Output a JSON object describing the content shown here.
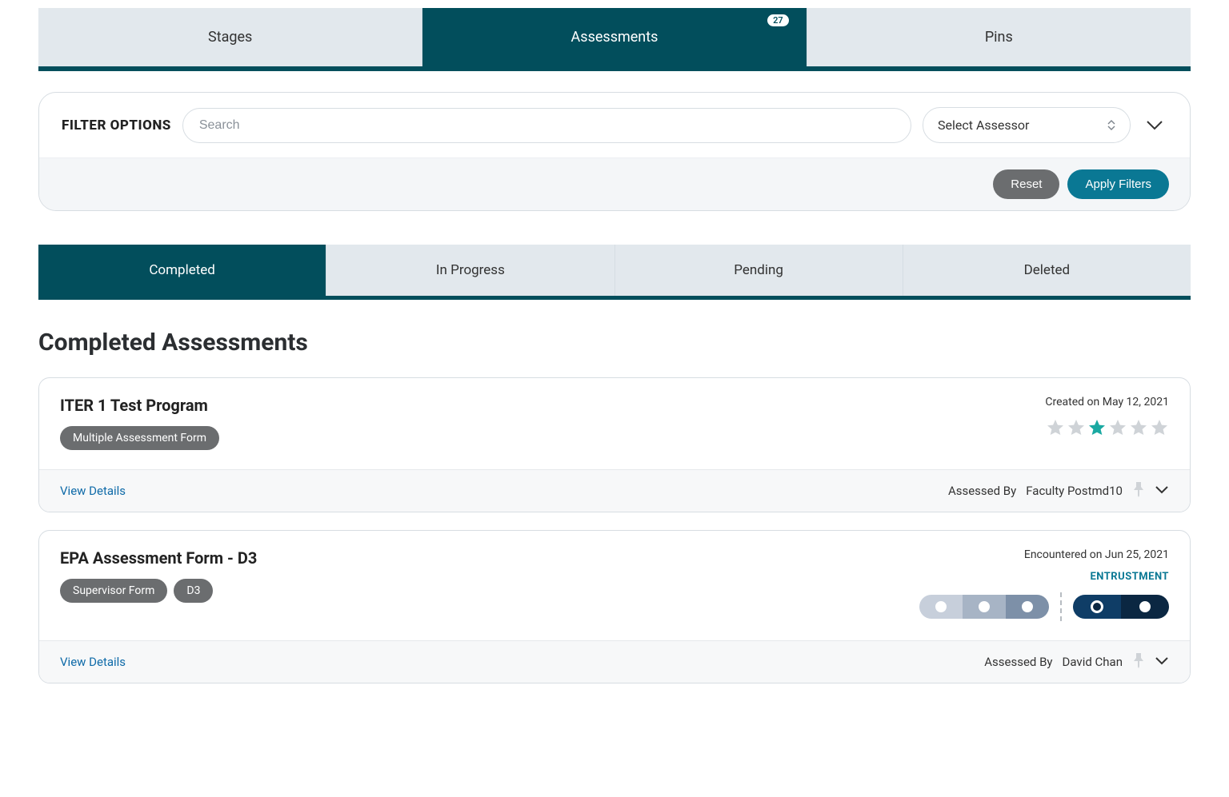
{
  "colors": {
    "brand_dark": "#024e5c",
    "brand_accent": "#0a7894",
    "tab_bg": "#e2e8ed",
    "gray_chip": "#6b6d6f",
    "star_empty": "#cfd3d7",
    "star_filled": "#1aa9a2",
    "link": "#0e6aa8",
    "scale1": "#c7cfdb",
    "scale2": "#a7b4c5",
    "scale3": "#7d90a8",
    "entrust1": "#0f3d66",
    "entrust2": "#0b2742"
  },
  "top_tabs": {
    "stages": "Stages",
    "assessments": "Assessments",
    "assessments_badge": "27",
    "pins": "Pins",
    "active": "assessments"
  },
  "filter": {
    "label": "FILTER OPTIONS",
    "search_placeholder": "Search",
    "select_label": "Select Assessor",
    "reset": "Reset",
    "apply": "Apply Filters"
  },
  "status_tabs": {
    "completed": "Completed",
    "in_progress": "In Progress",
    "pending": "Pending",
    "deleted": "Deleted",
    "active": "completed"
  },
  "section_title": "Completed Assessments",
  "cards": [
    {
      "title": "ITER 1 Test Program",
      "chips": [
        "Multiple Assessment Form"
      ],
      "meta": "Created on May 12, 2021",
      "stars_total": 6,
      "star_filled_index": 2,
      "view": "View Details",
      "assessed_by_label": "Assessed By",
      "assessed_by_value": "Faculty Postmd10",
      "rating_type": "stars"
    },
    {
      "title": "EPA Assessment Form - D3",
      "chips": [
        "Supervisor Form",
        "D3"
      ],
      "meta": "Encountered on Jun 25, 2021",
      "entrust_label": "ENTRUSTMENT",
      "scale_colors": [
        "#c7cfdb",
        "#a7b4c5",
        "#7d90a8"
      ],
      "entrust_colors": [
        "#0f3d66",
        "#0b2742"
      ],
      "entrust_selected_index": 0,
      "view": "View Details",
      "assessed_by_label": "Assessed By",
      "assessed_by_value": "David Chan",
      "rating_type": "entrust"
    }
  ]
}
